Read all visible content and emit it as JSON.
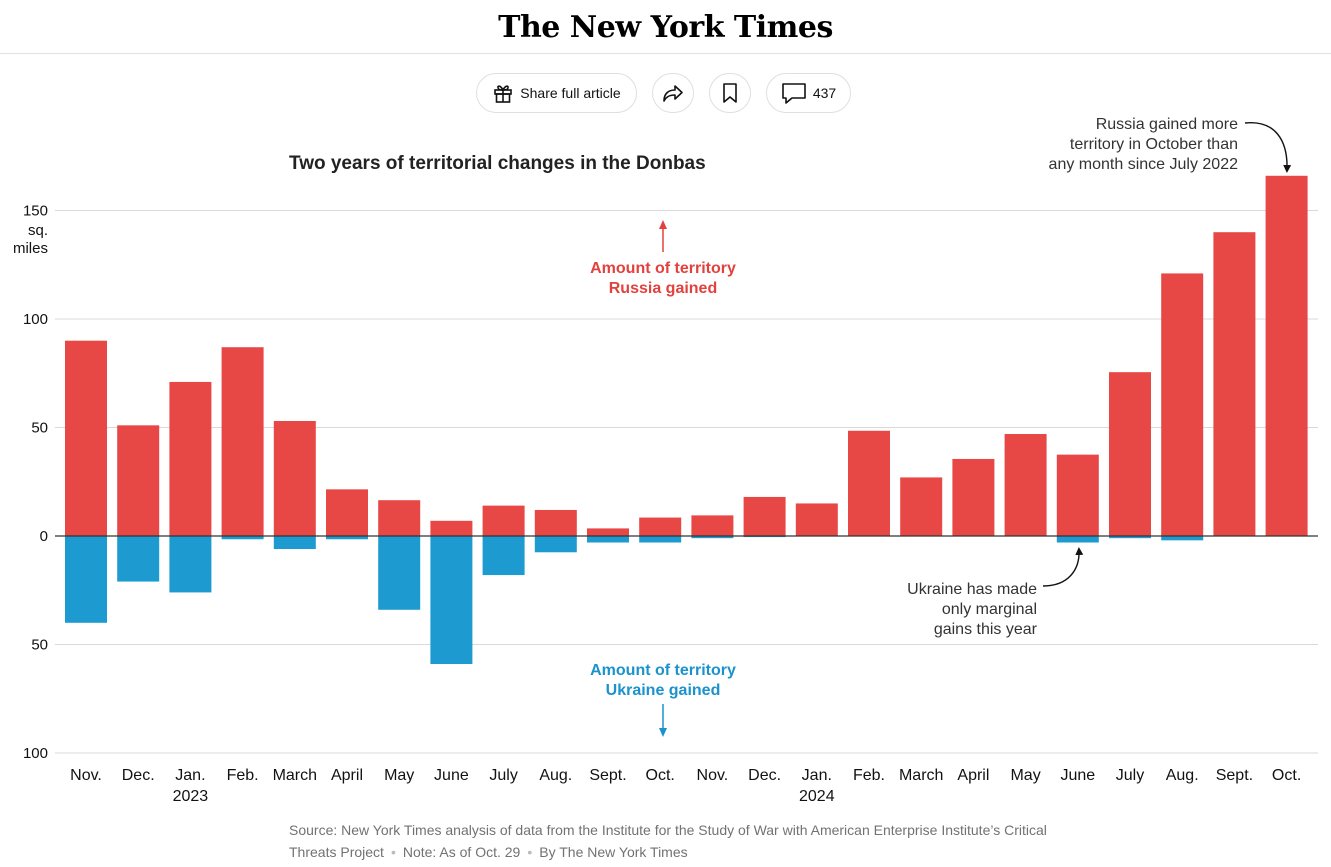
{
  "masthead": {
    "title": "The New York Times"
  },
  "toolbar": {
    "share_label": "Share full article",
    "comment_count": "437"
  },
  "icons": {
    "gift": "gift-icon",
    "share": "share-arrow-icon",
    "bookmark": "bookmark-icon",
    "comment": "comment-icon"
  },
  "colors": {
    "russia": "#e84845",
    "ukraine": "#1d9bd1",
    "russia_label": "#e2423d",
    "ukraine_label": "#1a93cc",
    "grid": "#d9d9d9",
    "axis": "#333333"
  },
  "chart_data": {
    "type": "bar",
    "title": "Two years of territorial changes in the Donbas",
    "ylabel_unit": [
      "sq.",
      "miles"
    ],
    "ylim": [
      -100,
      150
    ],
    "y_ticks": [
      {
        "value": 150,
        "label": "150"
      },
      {
        "value": 100,
        "label": "100"
      },
      {
        "value": 50,
        "label": "50"
      },
      {
        "value": 0,
        "label": "0"
      },
      {
        "value": -50,
        "label": "50"
      },
      {
        "value": -100,
        "label": "100"
      }
    ],
    "categories": [
      "Nov.",
      "Dec.",
      "Jan.",
      "Feb.",
      "March",
      "April",
      "May",
      "June",
      "July",
      "Aug.",
      "Sept.",
      "Oct.",
      "Nov.",
      "Dec.",
      "Jan.",
      "Feb.",
      "March",
      "April",
      "May",
      "June",
      "July",
      "Aug.",
      "Sept.",
      "Oct."
    ],
    "year_labels": [
      {
        "index": 2,
        "label": "2023"
      },
      {
        "index": 14,
        "label": "2024"
      }
    ],
    "series": [
      {
        "name": "Amount of territory Russia gained",
        "values": [
          90,
          51,
          71,
          87,
          53,
          21.5,
          16.5,
          7,
          14,
          12,
          3.5,
          8.5,
          9.5,
          18,
          15,
          48.5,
          27,
          35.5,
          47,
          37.5,
          75.5,
          121,
          140,
          166
        ]
      },
      {
        "name": "Amount of territory Ukraine gained",
        "values": [
          40,
          21,
          26,
          1.5,
          6,
          1.5,
          34,
          59,
          18,
          7.5,
          3,
          3,
          1,
          0.5,
          0,
          0,
          0,
          0,
          0,
          3,
          1,
          2,
          0,
          0
        ]
      }
    ],
    "labels": {
      "russia": [
        "Amount of territory",
        "Russia gained"
      ],
      "ukraine": [
        "Amount of territory",
        "Ukraine gained"
      ]
    },
    "annotations": {
      "october": [
        "Russia gained more",
        "territory in October than",
        "any month since July 2022"
      ],
      "ukraine": [
        "Ukraine has made",
        "only marginal",
        "gains this year"
      ]
    }
  },
  "footer": {
    "source": "Source: New York Times analysis of data from the Institute for the Study of War with American Enterprise Institute’s Critical Threats Project",
    "note": "Note: As of Oct. 29",
    "credit": "By The New York Times"
  }
}
